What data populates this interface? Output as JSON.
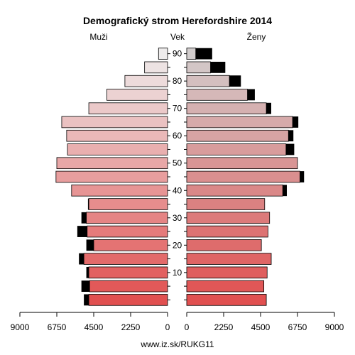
{
  "chart_data": {
    "type": "bar",
    "title": "Demografický strom Herefordshire 2014",
    "left_label": "Muži",
    "center_label": "Vek",
    "right_label": "Ženy",
    "footer": "www.iz.sk/RUKG11",
    "age_ticks": [
      "90",
      "80",
      "70",
      "60",
      "50",
      "40",
      "30",
      "20",
      "10"
    ],
    "x_ticks_left": [
      "9000",
      "6750",
      "4500",
      "2250",
      "0"
    ],
    "x_ticks_right": [
      "0",
      "2250",
      "4500",
      "6750",
      "9000"
    ],
    "xlim": [
      0,
      9000
    ],
    "age_groups": [
      "0-4",
      "5-9",
      "10-14",
      "15-19",
      "20-24",
      "25-29",
      "30-34",
      "35-39",
      "40-44",
      "45-49",
      "50-54",
      "55-59",
      "60-64",
      "65-69",
      "70-74",
      "75-79",
      "80-84",
      "85-89",
      "90+"
    ],
    "series": [
      {
        "name": "Muži",
        "values": [
          4800,
          4750,
          4800,
          5100,
          4500,
          4900,
          4950,
          4800,
          5850,
          6800,
          6750,
          6100,
          6150,
          6450,
          4800,
          3700,
          2600,
          1400,
          550
        ],
        "excess": [
          300,
          500,
          150,
          300,
          450,
          600,
          300,
          50,
          0,
          0,
          0,
          0,
          0,
          0,
          0,
          0,
          0,
          0,
          0
        ]
      },
      {
        "name": "Ženy",
        "values": [
          4850,
          4700,
          4900,
          5150,
          4550,
          4950,
          5050,
          4750,
          5850,
          6900,
          6750,
          6050,
          6200,
          6450,
          4850,
          3700,
          2600,
          1450,
          550
        ],
        "excess": [
          0,
          0,
          0,
          0,
          0,
          0,
          0,
          0,
          250,
          250,
          0,
          500,
          300,
          350,
          300,
          450,
          700,
          900,
          1000
        ]
      }
    ]
  }
}
